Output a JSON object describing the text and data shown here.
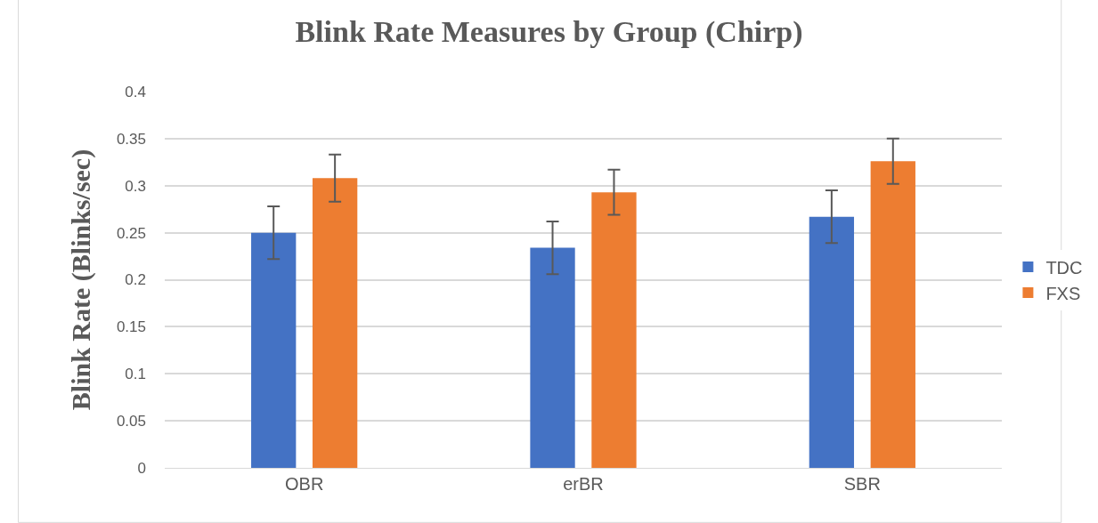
{
  "chart_data": {
    "type": "bar",
    "title": "Blink Rate Measures by Group (Chirp)",
    "ylabel": "Blink Rate (Blinks/sec)",
    "categories": [
      "OBR",
      "erBR",
      "SBR"
    ],
    "series": [
      {
        "name": "TDC",
        "color": "#4472c4",
        "values": [
          0.25,
          0.234,
          0.267
        ],
        "errors": [
          0.028,
          0.028,
          0.028
        ]
      },
      {
        "name": "FXS",
        "color": "#ed7d31",
        "values": [
          0.308,
          0.293,
          0.326
        ],
        "errors": [
          0.025,
          0.024,
          0.024
        ]
      }
    ],
    "ylim": [
      0,
      0.4
    ],
    "yticks": [
      0,
      0.05,
      0.1,
      0.15,
      0.2,
      0.25,
      0.3,
      0.35,
      0.4
    ],
    "grid": "y",
    "legend": "right"
  }
}
